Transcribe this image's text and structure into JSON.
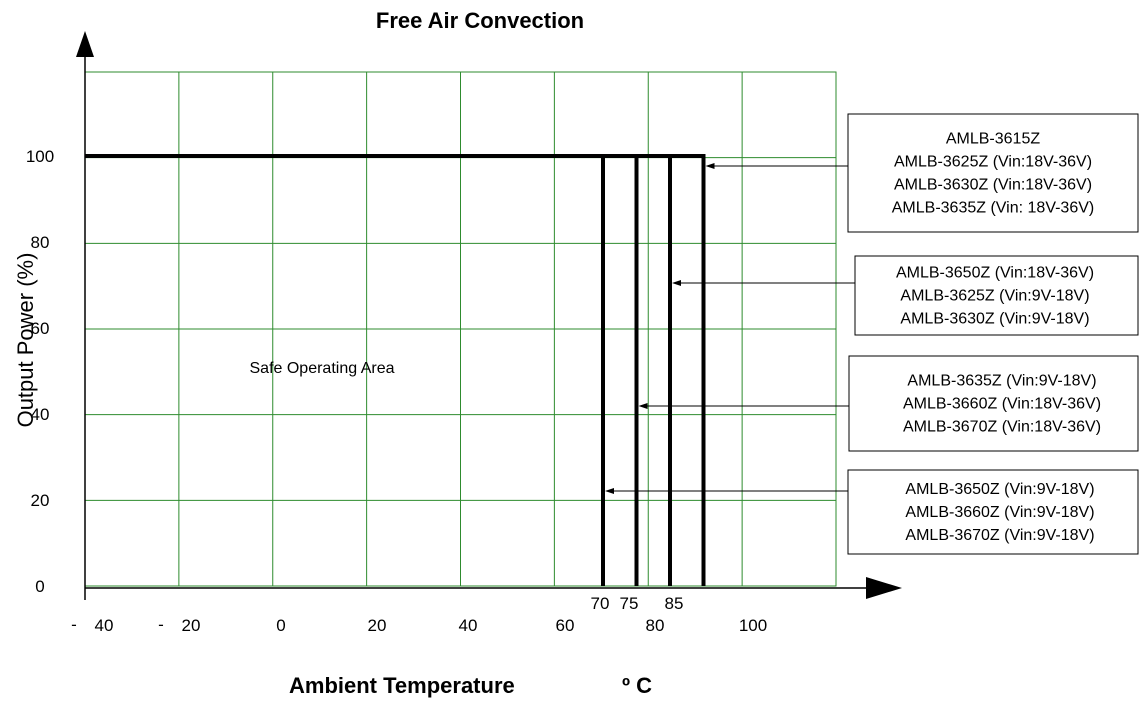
{
  "chart_data": {
    "type": "line",
    "title": "Free Air Convection",
    "ylabel": "Output Power (%)",
    "xlabel": "Ambient Temperature",
    "xlabel_unit": "º C",
    "region_label": "Safe Operating Area",
    "ylim": [
      0,
      100
    ],
    "grid": true,
    "grid_color": "#2e8b2e",
    "y_ticks": [
      "0",
      "20",
      "40",
      "60",
      "80",
      "100"
    ],
    "x_ticks": [
      {
        "dash": "-",
        "label": "40"
      },
      {
        "dash": "-",
        "label": "20"
      },
      {
        "dash": "",
        "label": "0"
      },
      {
        "dash": "",
        "label": "20"
      },
      {
        "dash": "",
        "label": "40"
      },
      {
        "dash": "",
        "label": "60"
      },
      {
        "dash": "",
        "label": "80"
      },
      {
        "dash": "",
        "label": "100"
      }
    ],
    "derating_ticks": [
      "70",
      "75",
      "85"
    ],
    "series": [
      {
        "x": [
          -40,
          70,
          70
        ],
        "y": [
          100,
          100,
          0
        ]
      },
      {
        "x": [
          -40,
          75,
          75
        ],
        "y": [
          100,
          100,
          0
        ]
      },
      {
        "x": [
          -40,
          80,
          80
        ],
        "y": [
          100,
          100,
          0
        ]
      },
      {
        "x": [
          -40,
          85,
          85
        ],
        "y": [
          100,
          100,
          0
        ]
      }
    ],
    "legend_groups": [
      {
        "target_temp": 85,
        "lines": [
          "AMLB-3615Z",
          "AMLB-3625Z (Vin:18V-36V)",
          "AMLB-3630Z (Vin:18V-36V)",
          "AMLB-3635Z (Vin: 18V-36V)"
        ]
      },
      {
        "target_temp": 80,
        "lines": [
          "AMLB-3650Z (Vin:18V-36V)",
          "AMLB-3625Z (Vin:9V-18V)",
          "AMLB-3630Z (Vin:9V-18V)"
        ]
      },
      {
        "target_temp": 75,
        "lines": [
          "AMLB-3635Z (Vin:9V-18V)",
          "AMLB-3660Z (Vin:18V-36V)",
          "AMLB-3670Z (Vin:18V-36V)"
        ]
      },
      {
        "target_temp": 70,
        "lines": [
          "AMLB-3650Z (Vin:9V-18V)",
          "AMLB-3660Z (Vin:9V-18V)",
          "AMLB-3670Z (Vin:9V-18V)"
        ]
      }
    ]
  }
}
